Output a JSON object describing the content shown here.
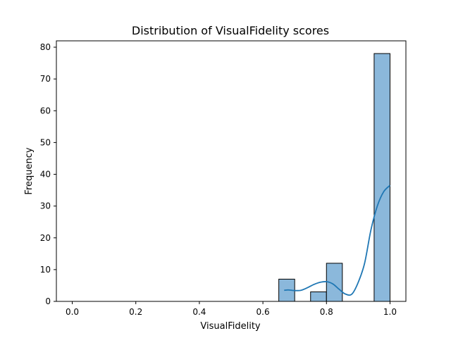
{
  "chart_data": {
    "type": "bar",
    "title": "Distribution of VisualFidelity scores",
    "xlabel": "VisualFidelity",
    "ylabel": "Frequency",
    "xlim": [
      -0.05,
      1.05
    ],
    "ylim": [
      0,
      82
    ],
    "xticks": [
      0.0,
      0.2,
      0.4,
      0.6,
      0.8,
      1.0
    ],
    "xtick_labels": [
      "0.0",
      "0.2",
      "0.4",
      "0.6",
      "0.8",
      "1.0"
    ],
    "yticks": [
      0,
      10,
      20,
      30,
      40,
      50,
      60,
      70,
      80
    ],
    "ytick_labels": [
      "0",
      "10",
      "20",
      "30",
      "40",
      "50",
      "60",
      "70",
      "80"
    ],
    "bins": [
      {
        "x0": 0.65,
        "x1": 0.7,
        "count": 7
      },
      {
        "x0": 0.75,
        "x1": 0.8,
        "count": 3
      },
      {
        "x0": 0.8,
        "x1": 0.85,
        "count": 12
      },
      {
        "x0": 0.95,
        "x1": 1.0,
        "count": 78
      }
    ],
    "kde": {
      "x": [
        0.667,
        0.68,
        0.7,
        0.72,
        0.74,
        0.76,
        0.78,
        0.8,
        0.82,
        0.84,
        0.86,
        0.88,
        0.9,
        0.92,
        0.94,
        0.96,
        0.98,
        1.0
      ],
      "y": [
        3.5,
        3.6,
        3.4,
        3.5,
        4.3,
        5.3,
        6.0,
        6.2,
        5.5,
        3.8,
        2.3,
        2.3,
        6.0,
        12.0,
        22.5,
        30.0,
        34.5,
        36.5
      ]
    },
    "bar_color": "#8bb8db",
    "bar_edge": "#000000",
    "kde_color": "#1f77b4",
    "grid": false
  }
}
